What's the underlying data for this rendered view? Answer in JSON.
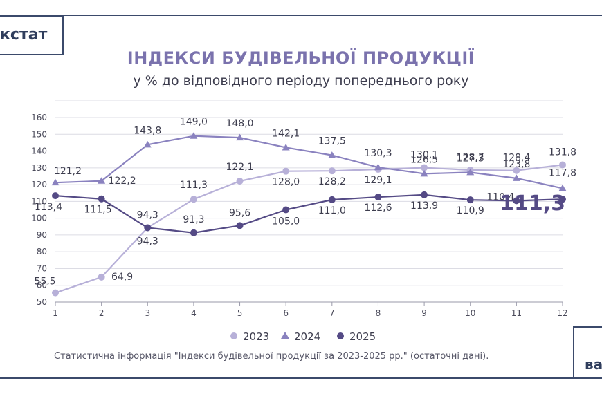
{
  "header": {
    "logo_text": "кстат",
    "title": "ІНДЕКСИ БУДІВЕЛЬНОЇ ПРОДУКЦІЇ",
    "subtitle": "у % до відповідного періоду попереднього року"
  },
  "corner_text": "ва",
  "footer": {
    "source": "Статистична інформація \"Індекси будівельної продукції за 2023-2025 рр.\" (остаточні дані)."
  },
  "colors": {
    "s2023": "#b7b0d8",
    "s2024": "#8a82bf",
    "s2025": "#544a85",
    "grid": "#dcdce4",
    "axis": "#9a9aaa"
  },
  "chart_data": {
    "type": "line",
    "x": [
      1,
      2,
      3,
      4,
      5,
      6,
      7,
      8,
      9,
      10,
      11,
      12
    ],
    "ylim": [
      50,
      160
    ],
    "yticks": [
      50,
      60,
      70,
      80,
      90,
      100,
      110,
      120,
      130,
      140,
      150,
      160
    ],
    "grid": true,
    "legend_placement": "bottom-center",
    "series": [
      {
        "name": "2023",
        "marker": "circle",
        "values": [
          55.5,
          64.9,
          94.3,
          111.3,
          122.1,
          128.0,
          128.2,
          129.1,
          130.1,
          128.7,
          128.4,
          131.8
        ],
        "labels": [
          "55,5",
          "64,9",
          "94,3",
          "111,3",
          "122,1",
          "128,0",
          "128,2",
          "129,1",
          "130,1",
          "128,7",
          "128,4",
          "131,8"
        ]
      },
      {
        "name": "2024",
        "marker": "triangle",
        "values": [
          121.2,
          122.2,
          143.8,
          149.0,
          148.0,
          142.1,
          137.5,
          130.3,
          126.5,
          127.3,
          123.8,
          117.8
        ],
        "labels": [
          "121,2",
          "122,2",
          "143,8",
          "149,0",
          "148,0",
          "142,1",
          "137,5",
          "130,3",
          "126,5",
          "127,3",
          "123,8",
          "117,8"
        ]
      },
      {
        "name": "2025",
        "marker": "circle",
        "values": [
          113.4,
          111.5,
          94.3,
          91.3,
          95.6,
          105.0,
          111.0,
          112.6,
          113.9,
          110.9,
          110.4,
          111.3
        ],
        "labels": [
          "113,4",
          "111,5",
          "94,3",
          "91,3",
          "95,6",
          "105,0",
          "111,0",
          "112,6",
          "113,9",
          "110,9",
          "110,4",
          "111,3"
        ]
      }
    ]
  }
}
